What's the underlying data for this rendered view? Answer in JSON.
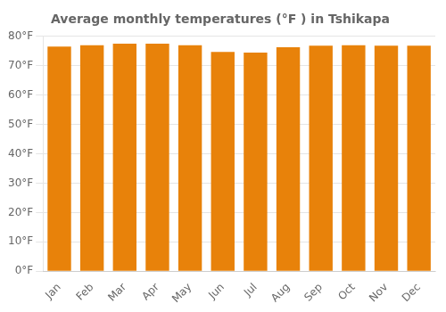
{
  "chart_data": {
    "type": "bar",
    "title": "Average monthly temperatures (°F ) in Tshikapa",
    "categories": [
      "Jan",
      "Feb",
      "Mar",
      "Apr",
      "May",
      "Jun",
      "Jul",
      "Aug",
      "Sep",
      "Oct",
      "Nov",
      "Dec"
    ],
    "values": [
      76.5,
      77.0,
      77.5,
      77.5,
      77.0,
      74.7,
      74.5,
      76.3,
      76.8,
      77.0,
      76.8,
      76.8
    ],
    "color": "#E8820A",
    "ylim": [
      0,
      80
    ],
    "yticks": [
      {
        "value": 0,
        "label": "0°F"
      },
      {
        "value": 10,
        "label": "10°F"
      },
      {
        "value": 20,
        "label": "20°F"
      },
      {
        "value": 30,
        "label": "30°F"
      },
      {
        "value": 40,
        "label": "40°F"
      },
      {
        "value": 50,
        "label": "50°F"
      },
      {
        "value": 60,
        "label": "60°F"
      },
      {
        "value": 70,
        "label": "70°F"
      },
      {
        "value": 80,
        "label": "80°F"
      }
    ],
    "grid": true
  }
}
